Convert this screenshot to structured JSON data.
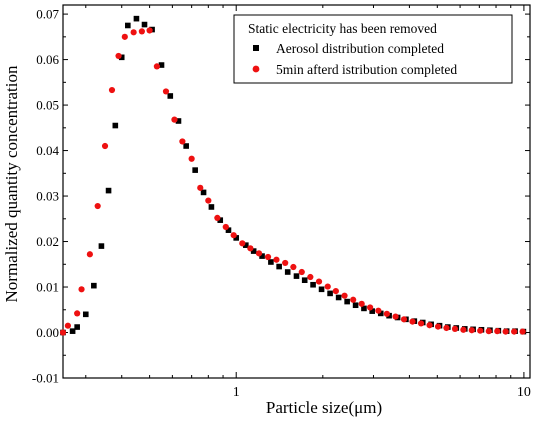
{
  "chart_data": {
    "type": "scatter",
    "xlabel": "Particle size(μm)",
    "ylabel": "Normalized quantity concentration",
    "x_scale": "log",
    "xlim": [
      0.25,
      10.5
    ],
    "ylim": [
      -0.01,
      0.072
    ],
    "x_ticks": [
      {
        "value": 1,
        "label": "1"
      },
      {
        "value": 10,
        "label": "10"
      }
    ],
    "y_ticks": [
      {
        "value": -0.01,
        "label": "-0.01"
      },
      {
        "value": 0.0,
        "label": "0.00"
      },
      {
        "value": 0.01,
        "label": "0.01"
      },
      {
        "value": 0.02,
        "label": "0.02"
      },
      {
        "value": 0.03,
        "label": "0.03"
      },
      {
        "value": 0.04,
        "label": "0.04"
      },
      {
        "value": 0.05,
        "label": "0.05"
      },
      {
        "value": 0.06,
        "label": "0.06"
      },
      {
        "value": 0.07,
        "label": "0.07"
      }
    ],
    "grid": false,
    "legend": {
      "position": "top-right",
      "title": "Static electricity has been removed"
    },
    "series": [
      {
        "name": "Aerosol distribution completed",
        "marker": "square",
        "color": "#000000",
        "x": [
          0.25,
          0.27,
          0.28,
          0.3,
          0.32,
          0.34,
          0.36,
          0.38,
          0.4,
          0.42,
          0.45,
          0.48,
          0.51,
          0.55,
          0.59,
          0.63,
          0.67,
          0.72,
          0.77,
          0.82,
          0.88,
          0.94,
          1.0,
          1.08,
          1.15,
          1.23,
          1.32,
          1.41,
          1.51,
          1.62,
          1.73,
          1.85,
          1.98,
          2.12,
          2.27,
          2.43,
          2.6,
          2.78,
          2.97,
          3.18,
          3.4,
          3.64,
          3.89,
          4.16,
          4.45,
          4.76,
          5.09,
          5.44,
          5.82,
          6.23,
          6.66,
          7.12,
          7.62,
          8.15,
          8.71,
          9.32,
          9.96
        ],
        "y": [
          0.0,
          0.0003,
          0.0012,
          0.004,
          0.0103,
          0.019,
          0.0312,
          0.0455,
          0.0605,
          0.0675,
          0.069,
          0.0677,
          0.0666,
          0.0588,
          0.052,
          0.0465,
          0.041,
          0.0357,
          0.0308,
          0.0276,
          0.0247,
          0.0225,
          0.0208,
          0.0192,
          0.0179,
          0.0168,
          0.0155,
          0.0145,
          0.0133,
          0.0124,
          0.0115,
          0.0105,
          0.0095,
          0.0086,
          0.0077,
          0.0068,
          0.006,
          0.0053,
          0.0047,
          0.0042,
          0.0037,
          0.0033,
          0.0029,
          0.0025,
          0.0022,
          0.0018,
          0.0015,
          0.0012,
          0.001,
          0.0008,
          0.0007,
          0.0006,
          0.0005,
          0.0004,
          0.0003,
          0.0003,
          0.0002
        ]
      },
      {
        "name": "5min afterd istribution completed",
        "marker": "circle",
        "color": "#ee1111",
        "x": [
          0.25,
          0.26,
          0.28,
          0.29,
          0.31,
          0.33,
          0.35,
          0.37,
          0.39,
          0.41,
          0.44,
          0.47,
          0.5,
          0.53,
          0.57,
          0.61,
          0.65,
          0.7,
          0.75,
          0.8,
          0.86,
          0.92,
          0.98,
          1.05,
          1.12,
          1.2,
          1.29,
          1.38,
          1.48,
          1.58,
          1.69,
          1.81,
          1.94,
          2.08,
          2.22,
          2.38,
          2.55,
          2.73,
          2.92,
          3.12,
          3.34,
          3.58,
          3.83,
          4.1,
          4.39,
          4.7,
          5.03,
          5.38,
          5.76,
          6.16,
          6.59,
          7.05,
          7.55,
          8.08,
          8.64,
          9.25,
          9.9
        ],
        "y": [
          0.0,
          0.0015,
          0.0042,
          0.0095,
          0.0172,
          0.0278,
          0.041,
          0.0533,
          0.0608,
          0.065,
          0.066,
          0.0662,
          0.0664,
          0.0585,
          0.053,
          0.0468,
          0.042,
          0.0382,
          0.0318,
          0.029,
          0.0252,
          0.0232,
          0.0214,
          0.0196,
          0.0185,
          0.0174,
          0.0166,
          0.016,
          0.0153,
          0.0144,
          0.0133,
          0.0122,
          0.0112,
          0.0101,
          0.0091,
          0.0081,
          0.0072,
          0.0063,
          0.0055,
          0.0048,
          0.0041,
          0.0035,
          0.0029,
          0.0024,
          0.002,
          0.0016,
          0.0013,
          0.001,
          0.0008,
          0.0006,
          0.0005,
          0.0004,
          0.0003,
          0.0003,
          0.0002,
          0.0002,
          0.0002
        ]
      }
    ]
  }
}
